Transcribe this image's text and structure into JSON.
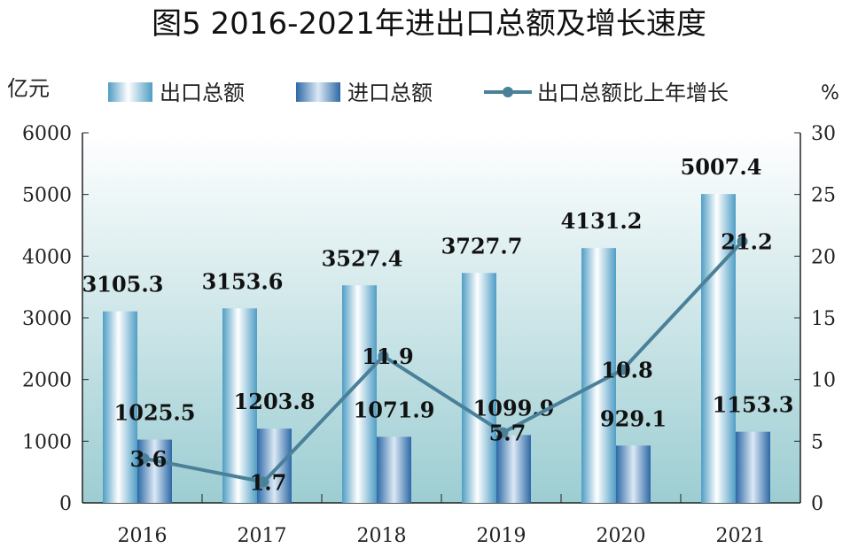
{
  "chart_data": {
    "type": "bar",
    "title": "图5  2016-2021年进出口总额及增长速度",
    "categories": [
      "2016",
      "2017",
      "2018",
      "2019",
      "2020",
      "2021"
    ],
    "series": [
      {
        "name": "出口总额",
        "type": "bar",
        "axis": "left",
        "values": [
          3105.3,
          3153.6,
          3527.4,
          3727.7,
          4131.2,
          5007.4
        ],
        "labels": [
          "3105.3",
          "3153.6",
          "3527.4",
          "3727.7",
          "4131.2",
          "5007.4"
        ]
      },
      {
        "name": "进口总额",
        "type": "bar",
        "axis": "left",
        "values": [
          1025.5,
          1203.8,
          1071.9,
          1099.9,
          929.1,
          1153.3
        ],
        "labels": [
          "1025.5",
          "1203.8",
          "1071.9",
          "1099.9",
          "929.1",
          "1153.3"
        ]
      },
      {
        "name": "出口总额比上年增长",
        "type": "line",
        "axis": "right",
        "values": [
          3.6,
          1.7,
          11.9,
          5.7,
          10.8,
          21.2
        ],
        "labels": [
          "3.6",
          "1.7",
          "11.9",
          "5.7",
          "10.8",
          "21.2"
        ]
      }
    ],
    "ylabel": "亿元",
    "y2label": "%",
    "ylim": [
      0,
      6000
    ],
    "y2lim": [
      0,
      30
    ],
    "yticks": [
      "0",
      "1000",
      "2000",
      "3000",
      "4000",
      "5000",
      "6000"
    ],
    "y2ticks": [
      "0",
      "5",
      "10",
      "15",
      "20",
      "25",
      "30"
    ],
    "legend_position": "top",
    "colors": {
      "export": "#5aa6c8",
      "import": "#2f6fa8",
      "line": "#4a8098",
      "bg_top": "#ffffff",
      "bg_bottom": "#9ccdd2"
    }
  }
}
